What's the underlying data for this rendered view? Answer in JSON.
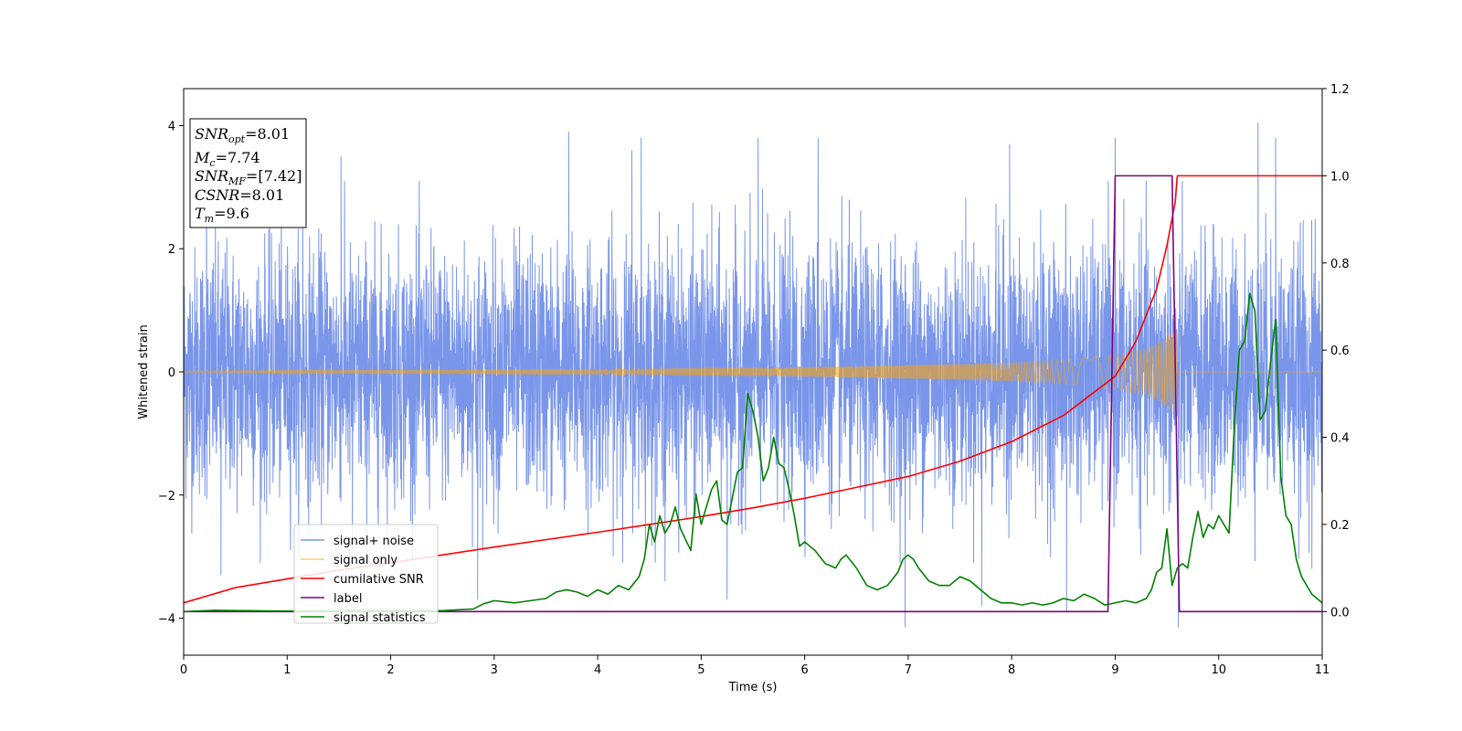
{
  "chart_data": {
    "type": "line",
    "xlabel": "Time (s)",
    "ylabel": "Whitened strain",
    "xlim": [
      0,
      11
    ],
    "ylim": [
      -4.6,
      4.6
    ],
    "y2lim": [
      -0.1,
      1.2
    ],
    "x_ticks": [
      0,
      1,
      2,
      3,
      4,
      5,
      6,
      7,
      8,
      9,
      10,
      11
    ],
    "y_ticks": [
      -4,
      -2,
      0,
      2,
      4
    ],
    "y2_ticks": [
      0.0,
      0.2,
      0.4,
      0.6,
      0.8,
      1.0,
      1.2
    ],
    "x_tick_labels": [
      "0",
      "1",
      "2",
      "3",
      "4",
      "5",
      "6",
      "7",
      "8",
      "9",
      "10",
      "11"
    ],
    "y_tick_labels": [
      "−4",
      "−2",
      "0",
      "2",
      "4"
    ],
    "y2_tick_labels": [
      "0.0",
      "0.2",
      "0.4",
      "0.6",
      "0.8",
      "1.0",
      "1.2"
    ],
    "legend_position": "lower-left",
    "annotation": {
      "snr_opt": {
        "base": "SNR",
        "sub": "opt",
        "value": "=8.01"
      },
      "mc": {
        "base": "M",
        "sub": "c",
        "value": "=7.74"
      },
      "snr_mf": {
        "base": "SNR",
        "sub": "MF",
        "value": "=[7.42]"
      },
      "csnr": {
        "base": "CSNR",
        "sub": "",
        "value": "=8.01"
      },
      "tm": {
        "base": "T",
        "sub": "m",
        "value": "=9.6"
      }
    },
    "series": [
      {
        "name": "signal+ noise",
        "color": "#4169e1",
        "axis": "left",
        "noise_amplitude": 1.0,
        "outlier_peaks": [
          [
            0.22,
            3.2
          ],
          [
            0.36,
            -3.3
          ],
          [
            1.15,
            3.4
          ],
          [
            1.52,
            3.5
          ],
          [
            1.63,
            -3.0
          ],
          [
            2.84,
            -3.7
          ],
          [
            3.72,
            3.9
          ],
          [
            4.33,
            3.6
          ],
          [
            4.42,
            3.8
          ],
          [
            4.65,
            -3.4
          ],
          [
            5.25,
            -3.7
          ],
          [
            5.55,
            3.8
          ],
          [
            6.13,
            3.8
          ],
          [
            6.97,
            -4.15
          ],
          [
            7.71,
            -3.8
          ],
          [
            7.98,
            3.7
          ],
          [
            8.53,
            -3.9
          ],
          [
            9.0,
            3.8
          ],
          [
            9.61,
            -4.15
          ],
          [
            10.38,
            4.05
          ],
          [
            10.55,
            3.8
          ],
          [
            10.9,
            -3.2
          ]
        ]
      },
      {
        "name": "signal only",
        "color": "#ffa500",
        "axis": "left",
        "envelope": [
          [
            0,
            0.02
          ],
          [
            2,
            0.03
          ],
          [
            4,
            0.05
          ],
          [
            6,
            0.08
          ],
          [
            7,
            0.11
          ],
          [
            8,
            0.15
          ],
          [
            8.5,
            0.2
          ],
          [
            9.0,
            0.28
          ],
          [
            9.3,
            0.38
          ],
          [
            9.45,
            0.5
          ],
          [
            9.55,
            0.65
          ],
          [
            9.6,
            0.0
          ],
          [
            11,
            0.0
          ]
        ]
      },
      {
        "name": "cumilative SNR",
        "color": "#ff0000",
        "axis": "right",
        "x": [
          0,
          0.5,
          1,
          1.5,
          2,
          2.5,
          3,
          3.5,
          4,
          4.5,
          5,
          5.5,
          6,
          6.5,
          7,
          7.5,
          8,
          8.5,
          9,
          9.2,
          9.4,
          9.5,
          9.58,
          9.6,
          11
        ],
        "y": [
          0.02,
          0.055,
          0.075,
          0.095,
          0.112,
          0.13,
          0.148,
          0.165,
          0.182,
          0.2,
          0.218,
          0.238,
          0.26,
          0.285,
          0.31,
          0.345,
          0.39,
          0.45,
          0.54,
          0.62,
          0.74,
          0.84,
          0.94,
          1.0,
          1.0
        ]
      },
      {
        "name": "label",
        "color": "#800080",
        "axis": "right",
        "x": [
          0,
          8.93,
          9.0,
          9.55,
          9.62,
          11
        ],
        "y": [
          0.0,
          0.0,
          1.0,
          1.0,
          0.0,
          0.0
        ]
      },
      {
        "name": "signal statistics",
        "color": "#008000",
        "axis": "right",
        "x": [
          0,
          0.3,
          0.6,
          1.0,
          1.5,
          2.0,
          2.5,
          2.8,
          2.9,
          3.0,
          3.2,
          3.5,
          3.6,
          3.7,
          3.8,
          3.9,
          4.0,
          4.1,
          4.2,
          4.3,
          4.4,
          4.45,
          4.5,
          4.55,
          4.6,
          4.65,
          4.7,
          4.75,
          4.8,
          4.9,
          4.95,
          5.0,
          5.05,
          5.1,
          5.15,
          5.2,
          5.25,
          5.3,
          5.35,
          5.4,
          5.45,
          5.5,
          5.55,
          5.6,
          5.65,
          5.7,
          5.75,
          5.8,
          5.85,
          5.9,
          5.95,
          6.0,
          6.1,
          6.2,
          6.3,
          6.35,
          6.4,
          6.5,
          6.6,
          6.7,
          6.8,
          6.9,
          6.95,
          7.0,
          7.05,
          7.1,
          7.2,
          7.3,
          7.4,
          7.5,
          7.6,
          7.7,
          7.8,
          7.9,
          8.0,
          8.1,
          8.2,
          8.3,
          8.4,
          8.5,
          8.6,
          8.7,
          8.8,
          8.9,
          9.0,
          9.1,
          9.2,
          9.3,
          9.35,
          9.4,
          9.45,
          9.5,
          9.55,
          9.6,
          9.65,
          9.7,
          9.75,
          9.8,
          9.85,
          9.9,
          9.95,
          10.0,
          10.05,
          10.1,
          10.15,
          10.2,
          10.25,
          10.3,
          10.35,
          10.4,
          10.45,
          10.5,
          10.55,
          10.6,
          10.65,
          10.7,
          10.75,
          10.8,
          10.9,
          11.0
        ],
        "y": [
          0.0,
          0.003,
          0.002,
          0.001,
          0.002,
          0.002,
          0.002,
          0.006,
          0.018,
          0.025,
          0.02,
          0.03,
          0.045,
          0.05,
          0.045,
          0.035,
          0.05,
          0.04,
          0.06,
          0.05,
          0.08,
          0.12,
          0.2,
          0.16,
          0.22,
          0.18,
          0.2,
          0.24,
          0.19,
          0.14,
          0.27,
          0.2,
          0.24,
          0.28,
          0.3,
          0.21,
          0.2,
          0.26,
          0.32,
          0.33,
          0.5,
          0.46,
          0.4,
          0.3,
          0.33,
          0.4,
          0.34,
          0.33,
          0.28,
          0.22,
          0.15,
          0.16,
          0.14,
          0.11,
          0.1,
          0.12,
          0.13,
          0.1,
          0.06,
          0.05,
          0.06,
          0.09,
          0.12,
          0.13,
          0.12,
          0.1,
          0.07,
          0.06,
          0.06,
          0.08,
          0.07,
          0.05,
          0.03,
          0.02,
          0.02,
          0.015,
          0.02,
          0.015,
          0.02,
          0.03,
          0.025,
          0.04,
          0.03,
          0.015,
          0.02,
          0.025,
          0.02,
          0.03,
          0.05,
          0.09,
          0.1,
          0.19,
          0.06,
          0.1,
          0.11,
          0.1,
          0.17,
          0.23,
          0.17,
          0.2,
          0.19,
          0.22,
          0.2,
          0.18,
          0.42,
          0.6,
          0.62,
          0.73,
          0.69,
          0.44,
          0.46,
          0.57,
          0.67,
          0.31,
          0.22,
          0.2,
          0.12,
          0.08,
          0.04,
          0.02
        ]
      }
    ]
  }
}
